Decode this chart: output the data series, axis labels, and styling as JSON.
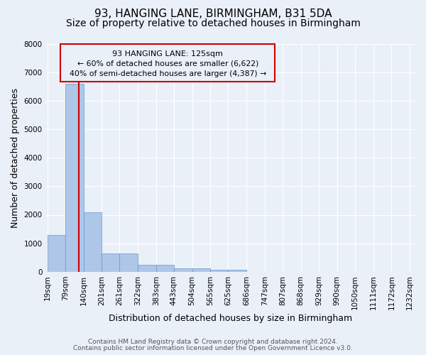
{
  "title": "93, HANGING LANE, BIRMINGHAM, B31 5DA",
  "subtitle": "Size of property relative to detached houses in Birmingham",
  "xlabel": "Distribution of detached houses by size in Birmingham",
  "ylabel": "Number of detached properties",
  "footnote1": "Contains HM Land Registry data © Crown copyright and database right 2024.",
  "footnote2": "Contains public sector information licensed under the Open Government Licence v3.0.",
  "property_label": "93 HANGING LANE: 125sqm",
  "annotation_line1": "← 60% of detached houses are smaller (6,622)",
  "annotation_line2": "40% of semi-detached houses are larger (4,387) →",
  "bar_edges": [
    19,
    79,
    140,
    201,
    261,
    322,
    383,
    443,
    504,
    565,
    625,
    686,
    747,
    807,
    868,
    929,
    990,
    1050,
    1111,
    1172,
    1232
  ],
  "bar_heights": [
    1300,
    6600,
    2080,
    640,
    640,
    250,
    250,
    120,
    120,
    80,
    80,
    0,
    0,
    0,
    0,
    0,
    0,
    0,
    0,
    0
  ],
  "bar_color": "#aec6e8",
  "bar_edge_color": "#6699cc",
  "vline_color": "#cc0000",
  "vline_x": 125,
  "annotation_box_color": "#cc0000",
  "ylim": [
    0,
    8000
  ],
  "yticks": [
    0,
    1000,
    2000,
    3000,
    4000,
    5000,
    6000,
    7000,
    8000
  ],
  "background_color": "#eaf0f8",
  "grid_color": "#ffffff",
  "title_fontsize": 11,
  "subtitle_fontsize": 10,
  "axis_label_fontsize": 9,
  "tick_fontsize": 7.5,
  "footnote_fontsize": 6.5
}
